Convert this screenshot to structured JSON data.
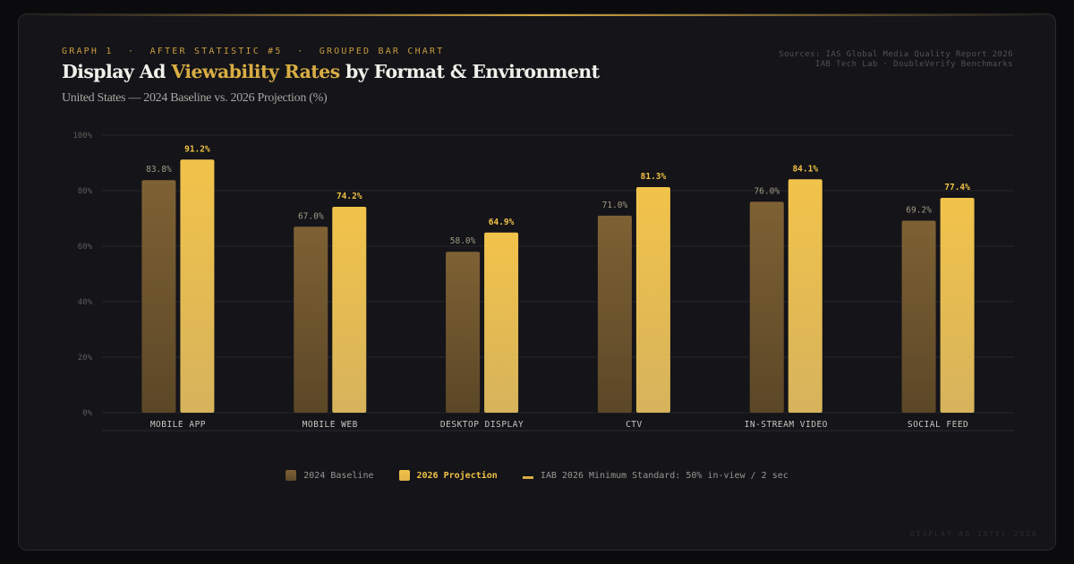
{
  "header": {
    "eyebrow": "GRAPH 1  ·  AFTER STATISTIC #5  ·  GROUPED BAR CHART",
    "title_pre": "Display Ad ",
    "title_highlight": "Viewability Rates",
    "title_post": " by Format & Environment",
    "subtitle": "United States — 2024 Baseline vs. 2026 Projection (%)",
    "sources_line1": "Sources: IAS Global Media Quality Report 2026",
    "sources_line2": "IAB Tech Lab · DoubleVerify Benchmarks"
  },
  "legend": {
    "baseline": "2024 Baseline",
    "projection": "2026 Projection",
    "standard": "IAB 2026 Minimum Standard: 50% in-view / 2 sec"
  },
  "footer": "DISPLAY AD INTEL 2026",
  "colors": {
    "baseline_top": "#7e6134",
    "baseline_bottom": "#5b4727",
    "projection_top": "#f2c34a",
    "projection_bottom": "#d6b35c",
    "projection_label": "#f0c144",
    "baseline_label": "#a39a86",
    "grid": "#26262c",
    "tick": "#5f5d58",
    "category": "#c9c6be"
  },
  "chart_data": {
    "type": "bar",
    "categories": [
      "MOBILE APP",
      "MOBILE WEB",
      "DESKTOP DISPLAY",
      "CTV",
      "IN-STREAM VIDEO",
      "SOCIAL FEED"
    ],
    "series": [
      {
        "name": "2024 Baseline",
        "values": [
          83.8,
          67.0,
          58.0,
          71.0,
          76.0,
          69.2
        ],
        "labels": [
          "83.8%",
          "67.0%",
          "58.0%",
          "71.0%",
          "76.0%",
          "69.2%"
        ]
      },
      {
        "name": "2026 Projection",
        "values": [
          91.2,
          74.2,
          64.9,
          81.3,
          84.1,
          77.4
        ],
        "labels": [
          "91.2%",
          "74.2%",
          "64.9%",
          "81.3%",
          "84.1%",
          "77.4%"
        ]
      }
    ],
    "yticks": [
      "0%",
      "20%",
      "40%",
      "60%",
      "80%",
      "100%"
    ],
    "ylim": [
      0,
      100
    ],
    "grid": true,
    "legend_position": "bottom-center"
  }
}
